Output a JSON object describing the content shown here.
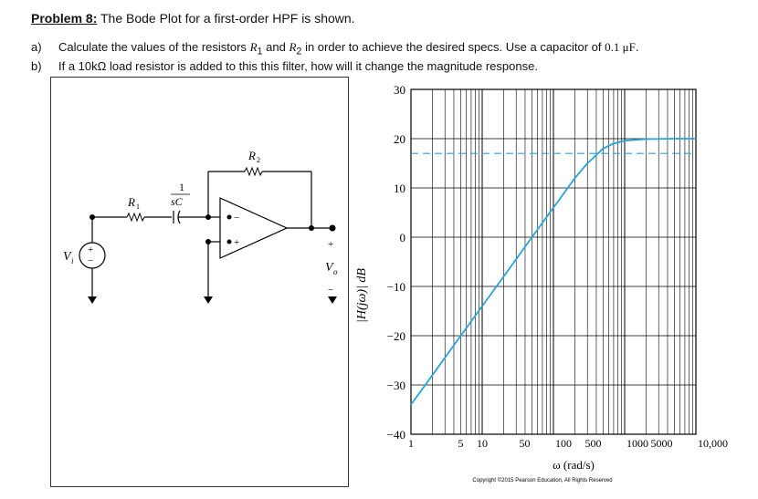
{
  "problem": {
    "label": "Problem 8:",
    "text": " The Bode Plot for a first-order HPF is shown."
  },
  "questions": [
    {
      "tag": "a)",
      "pre": "Calculate the values of the resistors ",
      "r1": "R",
      "r1sub": "1",
      "mid": " and ",
      "r2": "R",
      "r2sub": "2",
      "post": " in order to achieve the desired specs. Use a capacitor of ",
      "cap": "0.1 μF",
      "end": "."
    },
    {
      "tag": "b)",
      "text": "If a 10kΩ load resistor is added to this this filter, how will it change the magnitude response."
    }
  ],
  "circuit": {
    "vi": "V",
    "vi_sub": "i",
    "r1": "R",
    "r1_sub": "1",
    "r2": "R",
    "r2_sub": "2",
    "cap_num": "1",
    "cap_den": "sC",
    "vo": "V",
    "vo_sub": "o",
    "plus": "+",
    "minus": "−"
  },
  "chart_data": {
    "type": "line",
    "xscale": "log",
    "xlim": [
      1,
      10000
    ],
    "ylim": [
      -40,
      30
    ],
    "grid": true,
    "xticks": [
      "1",
      "5",
      "10",
      "50",
      "100",
      "500",
      "1000",
      "5000",
      "10,000"
    ],
    "yticks": [
      "30",
      "20",
      "10",
      "0",
      "−10",
      "−20",
      "−30",
      "−40"
    ],
    "ylabel": "|H(jω)| dB",
    "xlabel": "ω (rad/s)",
    "series": [
      {
        "x": [
          1,
          2,
          5,
          10,
          20,
          50,
          100,
          200,
          300,
          500,
          700,
          1000,
          2000,
          5000,
          10000
        ],
        "y": [
          -34,
          -28,
          -20,
          -14,
          -8,
          0,
          6,
          12,
          15,
          18,
          19,
          19.6,
          19.9,
          20,
          20
        ],
        "color": "#29a3d6"
      }
    ],
    "reference_line": {
      "y": 17,
      "style": "dashed",
      "color": "#29a3d6"
    },
    "copyright": "Copyright ©2015 Pearson Education, All Rights Reserved"
  }
}
